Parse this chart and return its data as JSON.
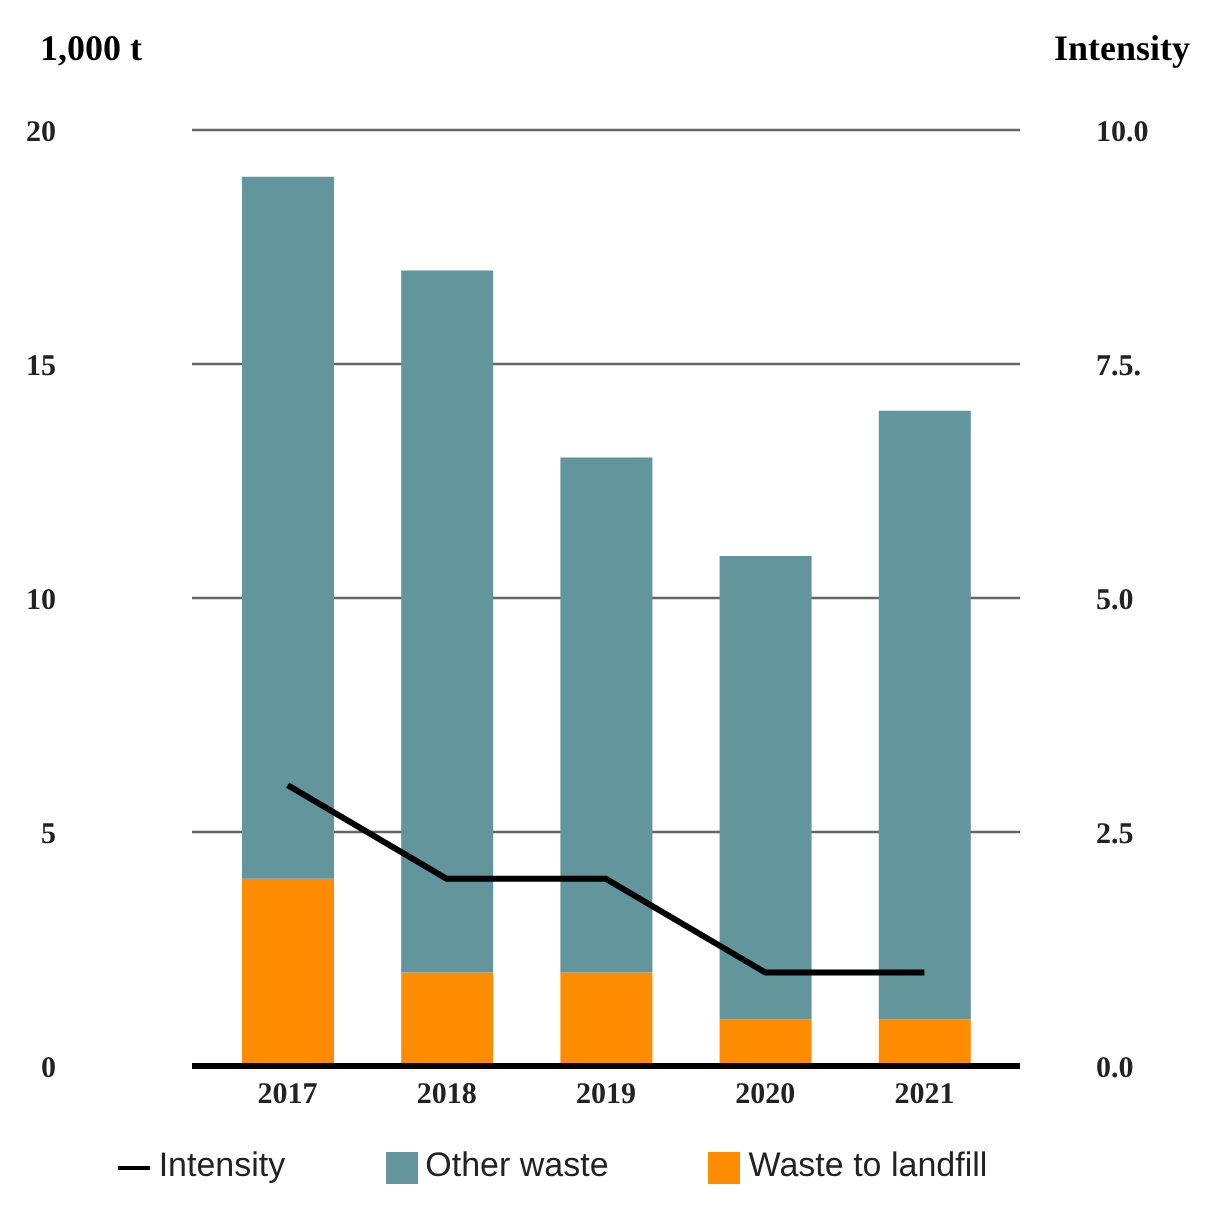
{
  "chart_data": {
    "type": "bar",
    "stacked": true,
    "ylabel": "1,000 t",
    "y2label": "Intensity",
    "categories": [
      "2017",
      "2018",
      "2019",
      "2020",
      "2021"
    ],
    "series": [
      {
        "name": "Waste to landfill",
        "color": "#ff8c00",
        "values": [
          4.0,
          2.0,
          2.0,
          1.0,
          1.0
        ]
      },
      {
        "name": "Other waste",
        "color": "#62959c",
        "values": [
          15.0,
          15.0,
          11.0,
          9.9,
          13.0
        ]
      },
      {
        "name": "Intensity",
        "type": "line",
        "axis": "y2",
        "color": "#000000",
        "marker": "none",
        "values": [
          3.0,
          2.0,
          2.0,
          1.0,
          1.0
        ]
      }
    ],
    "ylim": [
      0,
      20
    ],
    "yticks": [
      0,
      5,
      10,
      15,
      20
    ],
    "y2lim": [
      0,
      10
    ],
    "y2ticks": [
      {
        "value": 0,
        "label": "0.0"
      },
      {
        "value": 2.5,
        "label": "2.5"
      },
      {
        "value": 5,
        "label": "5.0"
      },
      {
        "value": 7.5,
        "label": "7.5."
      },
      {
        "value": 10,
        "label": "10.0"
      }
    ],
    "grid": "y",
    "legend": "bottom"
  }
}
